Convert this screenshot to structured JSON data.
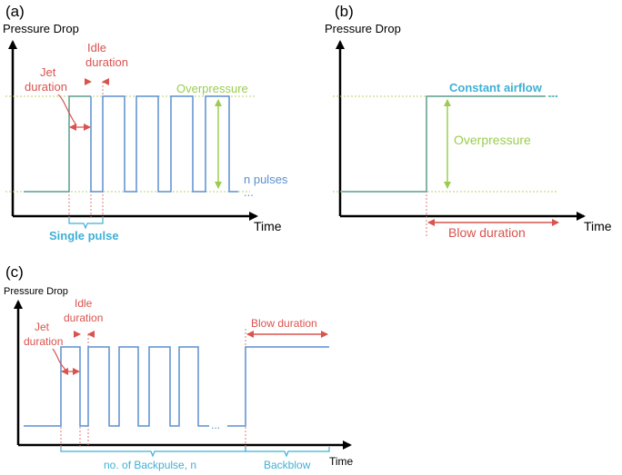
{
  "colors": {
    "axis": "#000000",
    "pulse": "#5b8fd0",
    "baseline_green": "#5a9e8c",
    "overpressure": "#9acd4f",
    "duration_red": "#d9534f",
    "bracket_cyan": "#3fb0d6",
    "guide_dotted_red": "#e07b7b",
    "guide_dotted_green": "#b7d36a"
  },
  "panel_a": {
    "label": "(a)",
    "ylabel": "Pressure Drop",
    "xlabel": "Time",
    "idle_label": [
      "Idle",
      "duration"
    ],
    "jet_label": [
      "Jet",
      "duration"
    ],
    "overpressure_label": "Overpressure",
    "n_pulses_label": "n pulses",
    "ellipsis": "...",
    "single_pulse_label": "Single pulse"
  },
  "panel_b": {
    "label": "(b)",
    "ylabel": "Pressure Drop",
    "xlabel": "Time",
    "constant_airflow_label": "Constant airflow",
    "ellipsis": "...",
    "overpressure_label": "Overpressure",
    "blow_duration_label": "Blow duration"
  },
  "panel_c": {
    "label": "(c)",
    "ylabel": "Pressure Drop",
    "xlabel": "Time",
    "idle_label": [
      "Idle",
      "duration"
    ],
    "jet_label": [
      "Jet",
      "duration"
    ],
    "blow_duration_label": "Blow duration",
    "ellipsis": "...",
    "backpulse_label": "no. of Backpulse, n",
    "backblow_label": "Backblow"
  }
}
